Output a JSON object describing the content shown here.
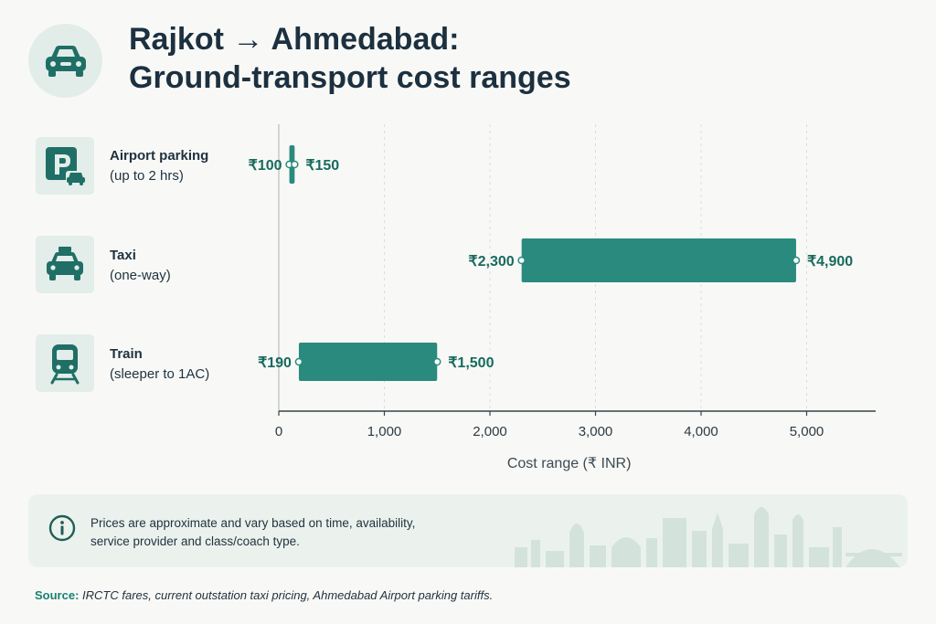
{
  "header": {
    "icon": "car-icon",
    "title_line1": "Rajkot → Ahmedabad:",
    "title_line2": "Ground-transport cost ranges"
  },
  "rows": [
    {
      "icon": "parking-icon",
      "label": "Airport parking",
      "sublabel": "(up to 2 hrs)"
    },
    {
      "icon": "taxi-icon",
      "label": "Taxi",
      "sublabel": "(one-way)"
    },
    {
      "icon": "train-icon",
      "label": "Train",
      "sublabel": "(sleeper to 1AC)"
    }
  ],
  "chart_data": {
    "type": "bar",
    "orientation": "horizontal-range",
    "categories": [
      "Airport parking",
      "Taxi",
      "Train"
    ],
    "ranges": [
      {
        "min": 100,
        "max": 150,
        "min_label": "₹100",
        "max_label": "₹150"
      },
      {
        "min": 2300,
        "max": 4900,
        "min_label": "₹2,300",
        "max_label": "₹4,900"
      },
      {
        "min": 190,
        "max": 1500,
        "min_label": "₹190",
        "max_label": "₹1,500"
      }
    ],
    "xlabel": "Cost range (₹ INR)",
    "xlim": [
      0,
      5600
    ],
    "xticks": [
      0,
      1000,
      2000,
      3000,
      4000,
      5000
    ],
    "xtick_labels": [
      "0",
      "1,000",
      "2,000",
      "3,000",
      "4,000",
      "5,000"
    ],
    "grid": "vertical-dashed",
    "bar_color": "#2a8a7e"
  },
  "note": {
    "icon": "info-icon",
    "text_line1": "Prices are approximate and vary based on time, availability,",
    "text_line2": "service provider and class/coach type."
  },
  "source": {
    "label": "Source:",
    "text": "IRCTC fares, current outstation taxi pricing, Ahmedabad Airport parking tariffs."
  },
  "colors": {
    "bar": "#2a8a7e",
    "bar_label": "#176a5f",
    "title": "#1c3040",
    "icon": "#1f6f66",
    "icon_bg": "#e3ede9"
  }
}
